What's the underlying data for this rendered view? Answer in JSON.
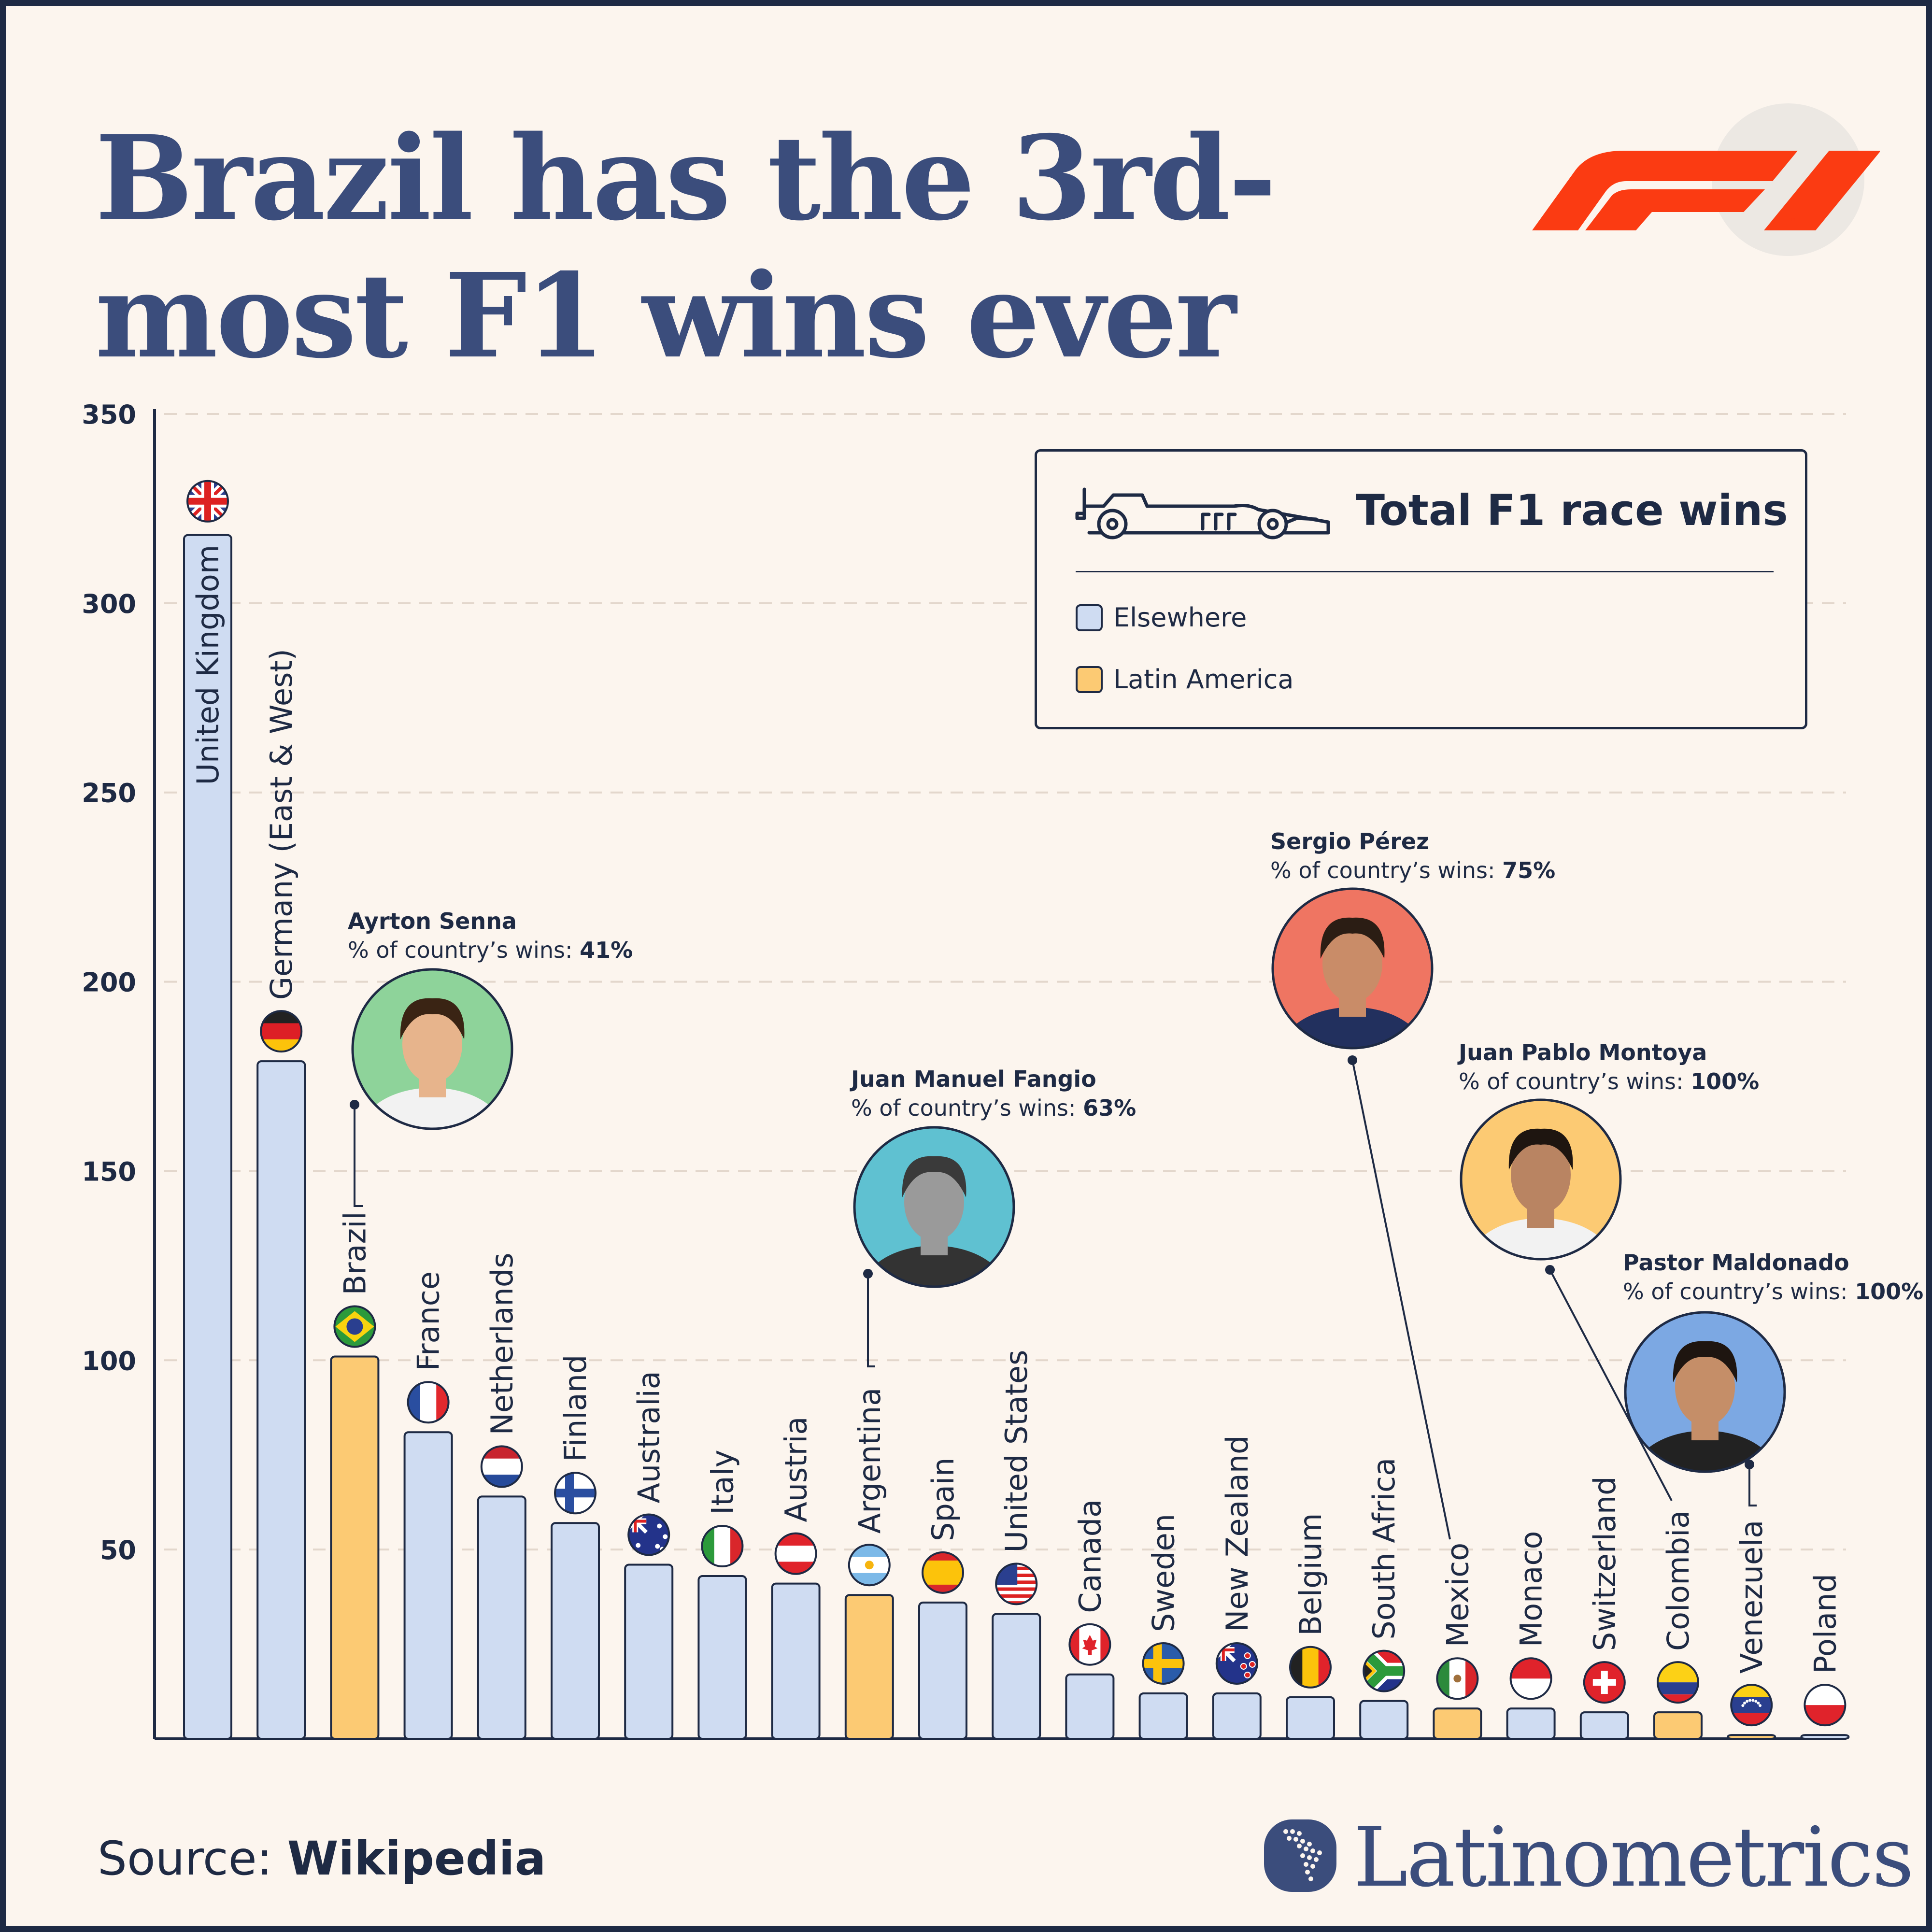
{
  "title": "Brazil has the 3rd-most F1 wins ever",
  "colors": {
    "elsewhere": "#cfdcf2",
    "latin_america": "#fcca73",
    "outline": "#1e2a44",
    "title": "#3b4d7c",
    "background": "#fcf5ee",
    "f1_red": "#fb3b12"
  },
  "legend": {
    "title": "Total F1 race wins",
    "items": [
      {
        "label": "Elsewhere",
        "color": "#cfdcf2"
      },
      {
        "label": "Latin America",
        "color": "#fcca73"
      }
    ]
  },
  "chart_data": {
    "type": "bar",
    "title": "Total F1 race wins",
    "ylim": [
      0,
      350
    ],
    "yticks": [
      50,
      100,
      150,
      200,
      250,
      300,
      350
    ],
    "grid": true,
    "legend_position": "top-right",
    "categories": [
      "United Kingdom",
      "Germany (East & West)",
      "Brazil",
      "France",
      "Netherlands",
      "Finland",
      "Australia",
      "Italy",
      "Austria",
      "Argentina",
      "Spain",
      "United States",
      "Canada",
      "Sweden",
      "New Zealand",
      "Belgium",
      "South Africa",
      "Mexico",
      "Monaco",
      "Switzerland",
      "Colombia",
      "Venezuela",
      "Poland"
    ],
    "values": [
      318,
      179,
      101,
      81,
      64,
      57,
      46,
      43,
      41,
      38,
      36,
      33,
      17,
      12,
      12,
      11,
      10,
      8,
      8,
      7,
      7,
      1,
      1
    ],
    "groups": [
      "Elsewhere",
      "Elsewhere",
      "Latin America",
      "Elsewhere",
      "Elsewhere",
      "Elsewhere",
      "Elsewhere",
      "Elsewhere",
      "Elsewhere",
      "Latin America",
      "Elsewhere",
      "Elsewhere",
      "Elsewhere",
      "Elsewhere",
      "Elsewhere",
      "Elsewhere",
      "Elsewhere",
      "Latin America",
      "Elsewhere",
      "Elsewhere",
      "Latin America",
      "Latin America",
      "Elsewhere"
    ],
    "annotations": [
      {
        "driver": "Ayrton Senna",
        "country": "Brazil",
        "pct_label": "% of country’s wins:",
        "pct": "41%"
      },
      {
        "driver": "Juan Manuel Fangio",
        "country": "Argentina",
        "pct_label": "% of country’s wins:",
        "pct": "63%"
      },
      {
        "driver": "Sergio Pérez",
        "country": "Mexico",
        "pct_label": "% of country’s wins:",
        "pct": "75%"
      },
      {
        "driver": "Juan Pablo Montoya",
        "country": "Colombia",
        "pct_label": "% of country’s wins:",
        "pct": "100%"
      },
      {
        "driver": "Pastor Maldonado",
        "country": "Venezuela",
        "pct_label": "% of country’s wins:",
        "pct": "100%"
      }
    ]
  },
  "source": {
    "label": "Source:",
    "value": "Wikipedia"
  },
  "brand": {
    "name": "Latinometrics",
    "logo_icon": "latin-america-map-icon"
  },
  "f1_logo": {
    "icon": "f1-logo-icon",
    "tm": "™"
  }
}
